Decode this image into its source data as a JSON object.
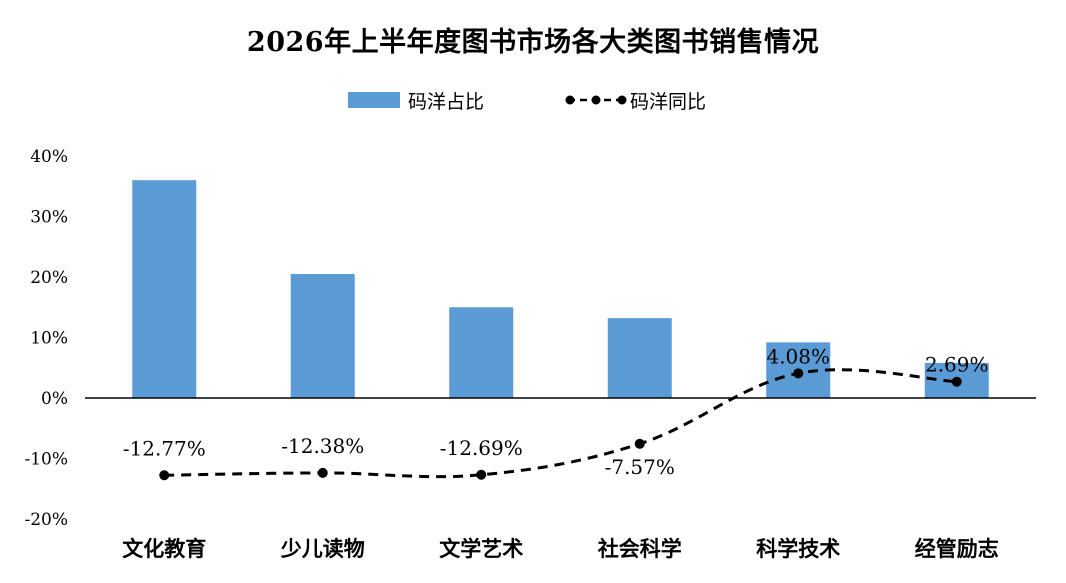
{
  "chart_data": {
    "type": "bar+line",
    "title": "2026年上半年度图书市场各大类图书销售情况",
    "categories": [
      "文化教育",
      "少儿读物",
      "文学艺术",
      "社会科学",
      "科学技术",
      "经管励志"
    ],
    "series": [
      {
        "name": "码洋占比",
        "type": "bar",
        "values": [
          36.0,
          20.5,
          15.0,
          13.2,
          9.2,
          5.8
        ],
        "color": "#5b9bd5"
      },
      {
        "name": "码洋同比",
        "type": "line",
        "values": [
          -12.77,
          -12.38,
          -12.69,
          -7.57,
          4.08,
          2.69
        ],
        "labels": [
          "-12.77%",
          "-12.38%",
          "-12.69%",
          "-7.57%",
          "4.08%",
          "2.69%"
        ],
        "color": "#000000",
        "style": "dashed-with-markers"
      }
    ],
    "yticks": [
      "40%",
      "30%",
      "20%",
      "10%",
      "0%",
      "-10%",
      "-20%"
    ],
    "ytick_values": [
      40,
      30,
      20,
      10,
      0,
      -10,
      -20
    ],
    "ylim": [
      -20,
      40
    ],
    "grid": false,
    "legend_position": "top-center"
  }
}
